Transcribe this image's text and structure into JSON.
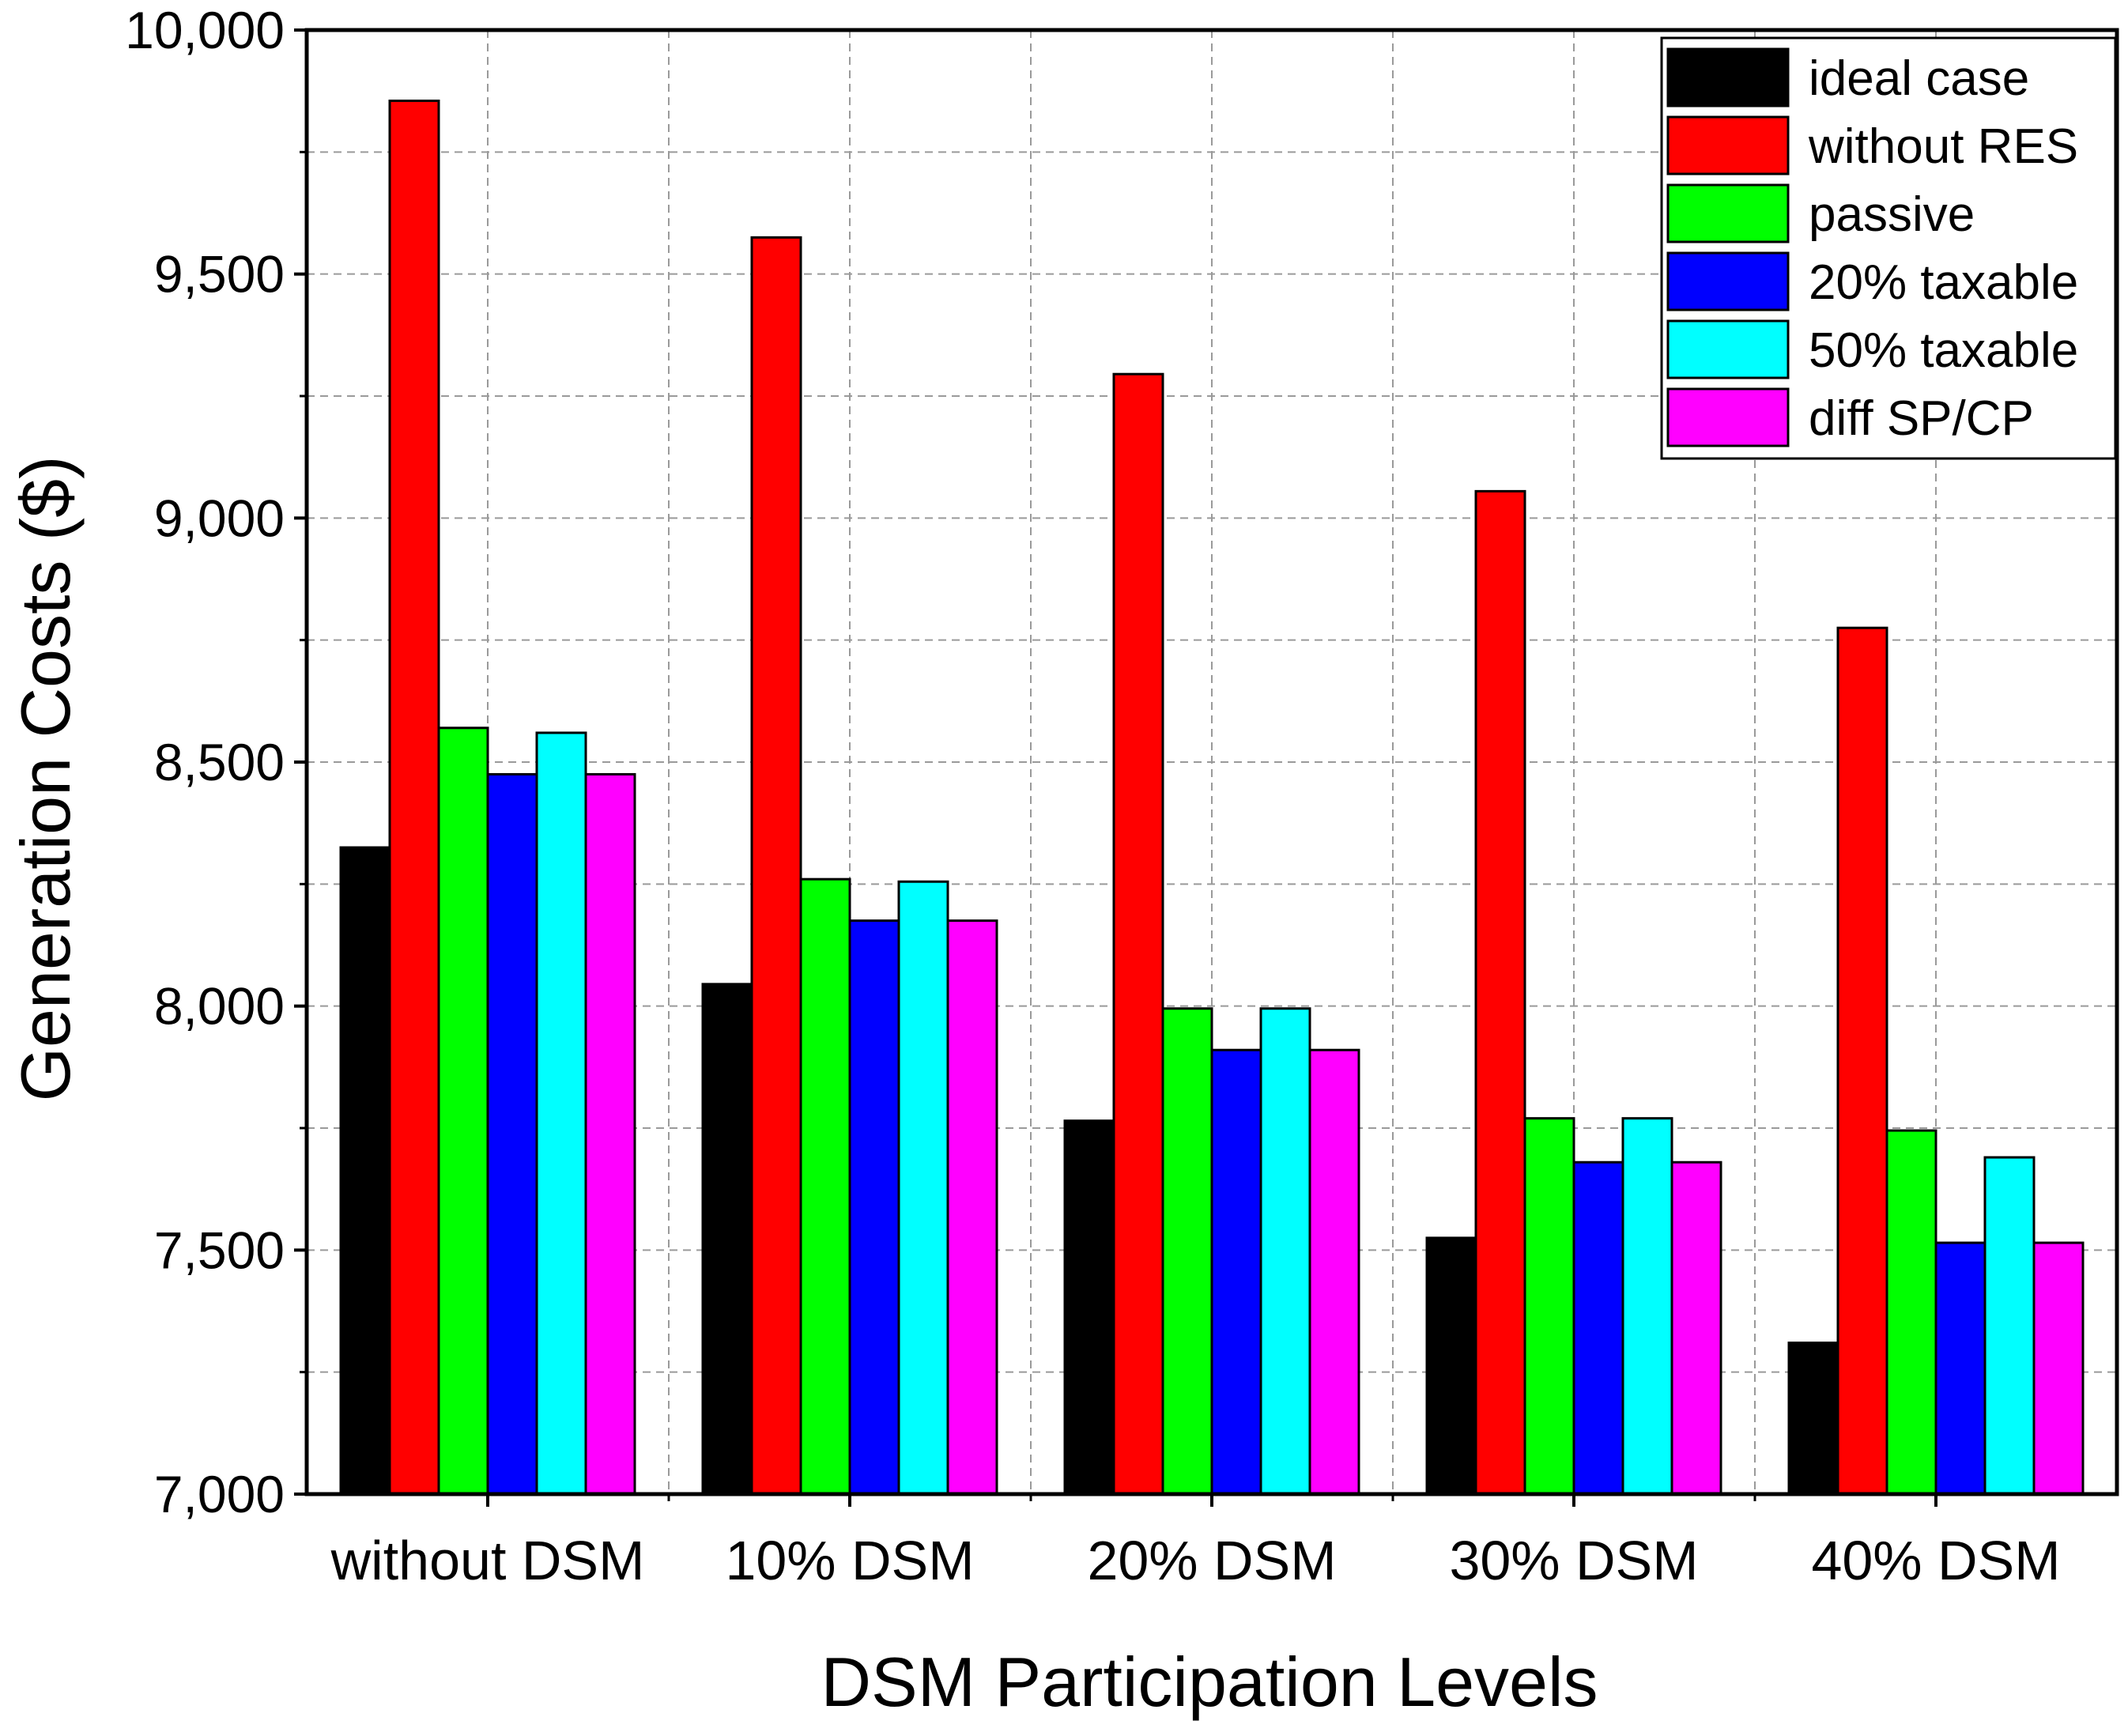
{
  "chart_data": {
    "type": "bar",
    "title": "",
    "xlabel": "DSM Participation Levels",
    "ylabel": "Generation Costs ($)",
    "ylim": [
      7000,
      10000
    ],
    "yticks": [
      7000,
      7500,
      8000,
      8500,
      9000,
      9500,
      10000
    ],
    "ytick_labels": [
      "7,000",
      "7,500",
      "8,000",
      "8,500",
      "9,000",
      "9,500",
      "10,000"
    ],
    "categories": [
      "without DSM",
      "10% DSM",
      "20% DSM",
      "30% DSM",
      "40% DSM"
    ],
    "grid": true,
    "legend_position": "top-right",
    "series": [
      {
        "name": "ideal case",
        "color": "#000000",
        "values": [
          8325,
          8045,
          7765,
          7525,
          7310
        ]
      },
      {
        "name": "without RES",
        "color": "#ff0000",
        "values": [
          9855,
          9575,
          9295,
          9055,
          8775
        ]
      },
      {
        "name": "passive",
        "color": "#00ff00",
        "values": [
          8570,
          8260,
          7995,
          7770,
          7745
        ]
      },
      {
        "name": "20% taxable",
        "color": "#0000ff",
        "values": [
          8475,
          8175,
          7910,
          7680,
          7515
        ]
      },
      {
        "name": "50% taxable",
        "color": "#00ffff",
        "values": [
          8560,
          8255,
          7995,
          7770,
          7690
        ]
      },
      {
        "name": "diff SP/CP",
        "color": "#ff00ff",
        "values": [
          8475,
          8175,
          7910,
          7680,
          7515
        ]
      }
    ]
  }
}
